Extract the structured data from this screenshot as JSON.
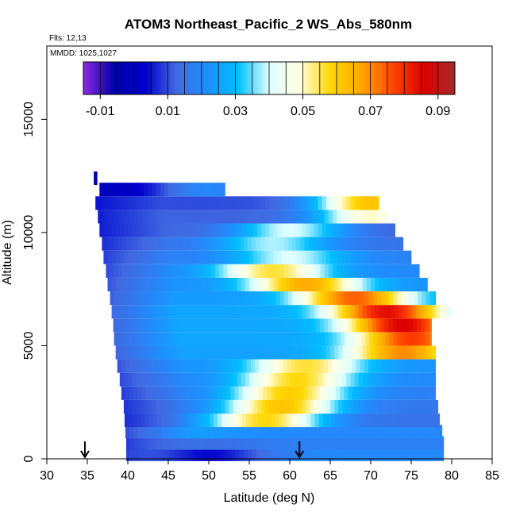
{
  "chart_data": {
    "type": "heatmap",
    "title": "ATOM3 Northeast_Pacific_2 WS_Abs_580nm",
    "annotations": {
      "flights": "Flts: 12,13",
      "dates": "MMDD: 1025,1027"
    },
    "xlabel": "Latitude (deg N)",
    "ylabel": "Altitude (m)",
    "xlim": [
      30,
      85
    ],
    "ylim": [
      0,
      17000
    ],
    "x_ticks": [
      30,
      35,
      40,
      45,
      50,
      55,
      60,
      65,
      70,
      75,
      80,
      85
    ],
    "y_ticks": [
      0,
      5000,
      10000,
      15000
    ],
    "grid": false,
    "colorbar": {
      "placement": "top",
      "range": [
        -0.015,
        0.095
      ],
      "ticks": [
        -0.01,
        0.01,
        0.03,
        0.05,
        0.07,
        0.09
      ],
      "tick_labels": [
        "-0.01",
        "0.01",
        "0.03",
        "0.05",
        "0.07",
        "0.09"
      ],
      "colors": [
        "#8a2be2",
        "#0000a8",
        "#0000cd",
        "#4169e1",
        "#1e90ff",
        "#00bfff",
        "#e0ffff",
        "#ffffe0",
        "#ffd700",
        "#ffa500",
        "#ff4500",
        "#dd0000",
        "#a52a2a"
      ]
    },
    "layers": [
      {
        "alt": 200,
        "lat_min": 39.8,
        "lat_max": 79.0,
        "lat_peak": 50,
        "peak_value": 0.004,
        "base_value": 0.02
      },
      {
        "alt": 700,
        "lat_min": 39.8,
        "lat_max": 79.0,
        "lat_peak": 50,
        "peak_value": 0.014,
        "base_value": 0.018
      },
      {
        "alt": 1200,
        "lat_min": 39.7,
        "lat_max": 78.8,
        "lat_peak": 48,
        "peak_value": 0.024,
        "base_value": 0.02
      },
      {
        "alt": 1700,
        "lat_min": 39.6,
        "lat_max": 78.5,
        "lat_peak": 57,
        "peak_value": 0.058,
        "base_value": 0.015
      },
      {
        "alt": 2300,
        "lat_min": 39.5,
        "lat_max": 78.3,
        "lat_peak": 59,
        "peak_value": 0.062,
        "base_value": 0.016
      },
      {
        "alt": 2900,
        "lat_min": 39.2,
        "lat_max": 78.0,
        "lat_peak": 60,
        "peak_value": 0.06,
        "base_value": 0.018
      },
      {
        "alt": 3500,
        "lat_min": 39.0,
        "lat_max": 78.0,
        "lat_peak": 61,
        "peak_value": 0.058,
        "base_value": 0.02
      },
      {
        "alt": 4100,
        "lat_min": 38.7,
        "lat_max": 78.0,
        "lat_peak": 62,
        "peak_value": 0.056,
        "base_value": 0.022
      },
      {
        "alt": 4700,
        "lat_min": 38.5,
        "lat_max": 78.0,
        "lat_peak": 74,
        "peak_value": 0.07,
        "base_value": 0.025
      },
      {
        "alt": 5300,
        "lat_min": 38.3,
        "lat_max": 77.5,
        "lat_peak": 75,
        "peak_value": 0.078,
        "base_value": 0.026
      },
      {
        "alt": 5900,
        "lat_min": 38.2,
        "lat_max": 77.5,
        "lat_peak": 74,
        "peak_value": 0.086,
        "base_value": 0.026
      },
      {
        "alt": 6500,
        "lat_min": 38.0,
        "lat_max": 80.0,
        "lat_peak": 72,
        "peak_value": 0.084,
        "base_value": 0.026
      },
      {
        "alt": 7100,
        "lat_min": 37.8,
        "lat_max": 78.0,
        "lat_peak": 68,
        "peak_value": 0.074,
        "base_value": 0.024
      },
      {
        "alt": 7700,
        "lat_min": 37.5,
        "lat_max": 77.0,
        "lat_peak": 62,
        "peak_value": 0.066,
        "base_value": 0.022
      },
      {
        "alt": 8300,
        "lat_min": 37.3,
        "lat_max": 76.0,
        "lat_peak": 58,
        "peak_value": 0.056,
        "base_value": 0.02
      },
      {
        "alt": 8900,
        "lat_min": 37.0,
        "lat_max": 75.0,
        "lat_peak": 60,
        "peak_value": 0.04,
        "base_value": 0.018
      },
      {
        "alt": 9500,
        "lat_min": 36.8,
        "lat_max": 74.0,
        "lat_peak": 58,
        "peak_value": 0.038,
        "base_value": 0.015
      },
      {
        "alt": 10100,
        "lat_min": 36.5,
        "lat_max": 73.0,
        "lat_peak": 60,
        "peak_value": 0.04,
        "base_value": 0.012
      },
      {
        "alt": 10700,
        "lat_min": 36.3,
        "lat_max": 72.0,
        "lat_peak": 70,
        "peak_value": 0.05,
        "base_value": 0.012
      },
      {
        "alt": 11300,
        "lat_min": 36.0,
        "lat_max": 71.0,
        "lat_peak": 70,
        "peak_value": 0.062,
        "base_value": 0.01
      },
      {
        "alt": 11900,
        "lat_min": 36.5,
        "lat_max": 52.0,
        "lat_peak": 50,
        "peak_value": 0.02,
        "base_value": 0.0
      },
      {
        "alt": 12400,
        "lat_min": 35.8,
        "lat_max": 36.2,
        "lat_peak": 36,
        "peak_value": -0.012,
        "base_value": -0.012
      }
    ],
    "markers": [
      34.7,
      61.2
    ]
  }
}
